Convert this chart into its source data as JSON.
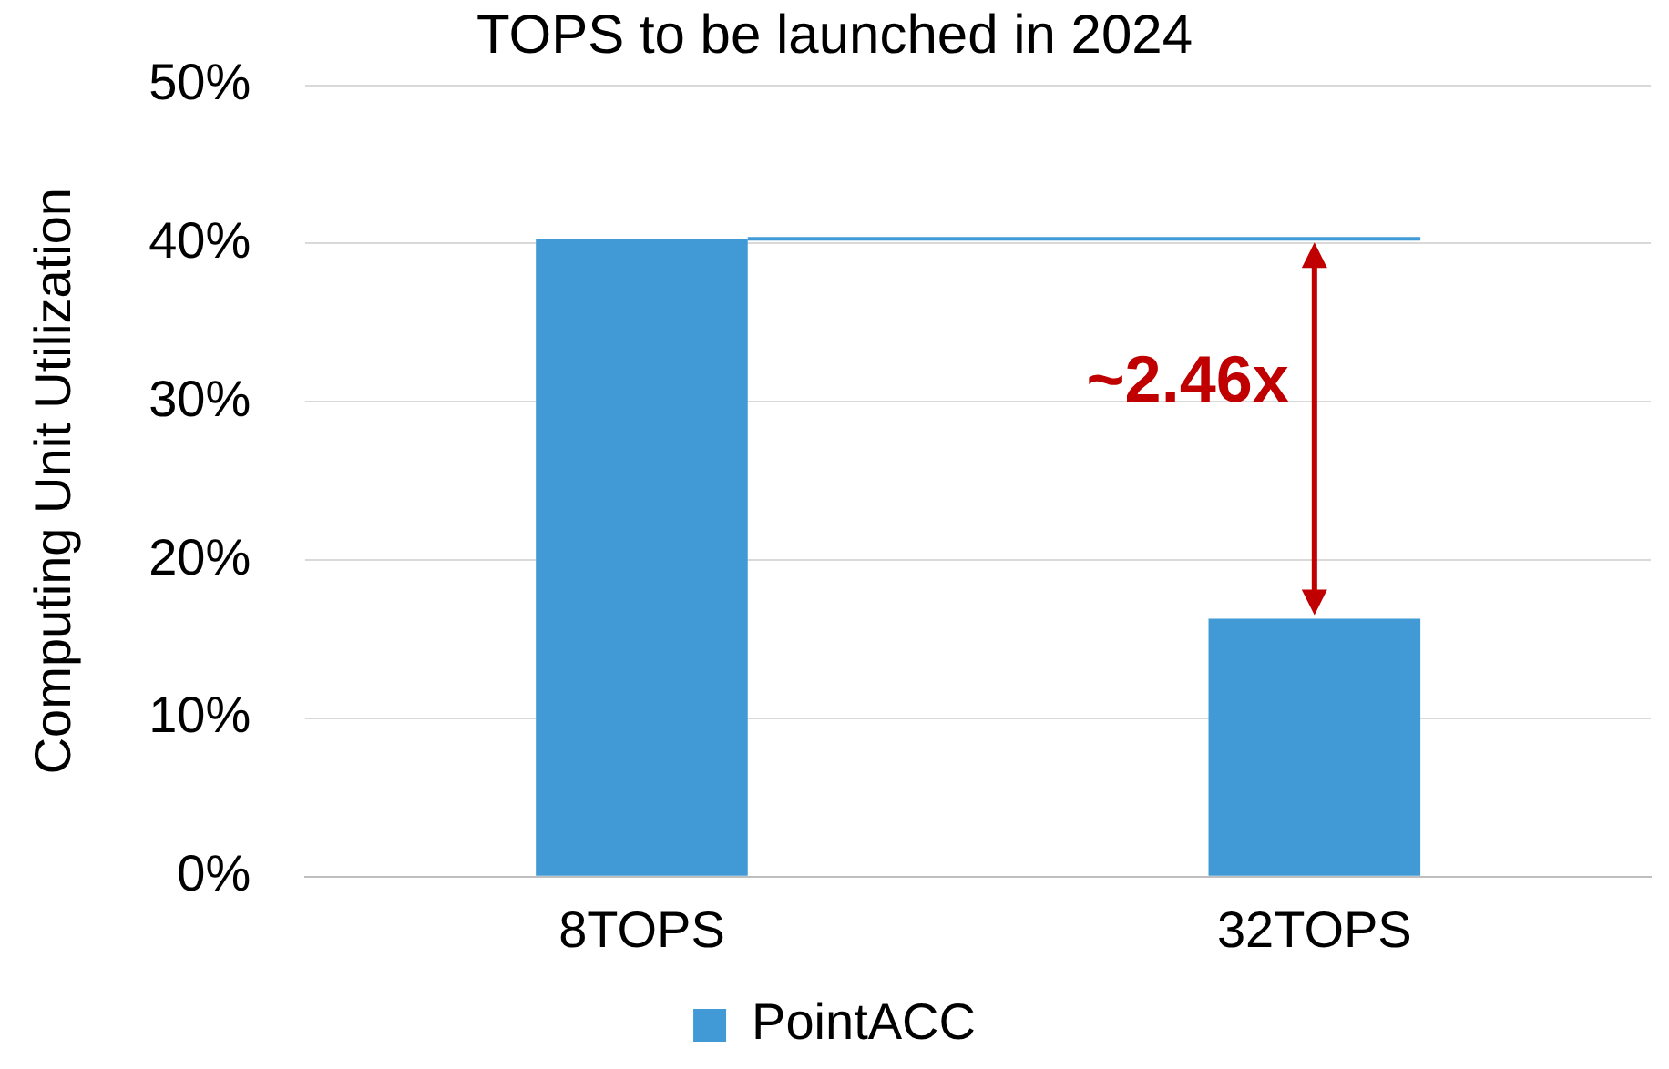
{
  "chart_data": {
    "type": "bar",
    "title": "TOPS to be launched in 2024",
    "ylabel": "Computing Unit Utilization",
    "categories": [
      "8TOPS",
      "32TOPS"
    ],
    "series": [
      {
        "name": "PointACC",
        "color": "#419ad6",
        "values": [
          40.3,
          16.3
        ]
      }
    ],
    "ylim": [
      0,
      50
    ],
    "yticks": [
      {
        "value": 0,
        "label": "0%"
      },
      {
        "value": 10,
        "label": "10%"
      },
      {
        "value": 20,
        "label": "20%"
      },
      {
        "value": 30,
        "label": "30%"
      },
      {
        "value": 40,
        "label": "40%"
      },
      {
        "value": 50,
        "label": "50%"
      }
    ],
    "annotations": [
      "~2.46x"
    ],
    "ref_lines": [
      {
        "axis": "y",
        "value": 40.3,
        "color": "#419ad6"
      }
    ],
    "grid": "y",
    "legend": "bottom"
  }
}
